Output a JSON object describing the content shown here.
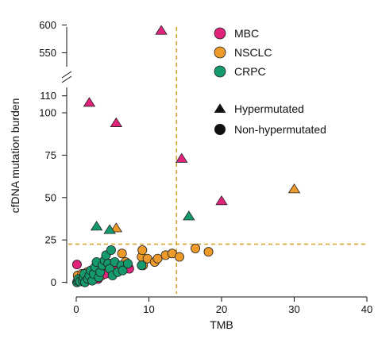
{
  "chart_data": {
    "type": "scatter",
    "xlabel": "TMB",
    "ylabel": "cfDNA mutation burden",
    "x_ticks": [
      "0",
      "10",
      "20",
      "30",
      "40"
    ],
    "x_tick_values": [
      0,
      10,
      20,
      30,
      40
    ],
    "xlim": [
      0,
      40
    ],
    "y_axis_break": true,
    "y_lower_ticks": [
      "0",
      "25",
      "50",
      "75",
      "100",
      "110"
    ],
    "y_lower_tick_values": [
      0,
      25,
      50,
      75,
      100,
      110
    ],
    "y_lower_range": [
      -3,
      115
    ],
    "y_upper_ticks": [
      "550",
      "600"
    ],
    "y_upper_tick_values": [
      550,
      600
    ],
    "y_upper_range": [
      525,
      605
    ],
    "threshold_lines": [
      {
        "axis": "x",
        "value": 13.8,
        "style": "dashed",
        "color": "#d4a02a"
      },
      {
        "axis": "y",
        "value": 22.5,
        "style": "dashed",
        "color": "#d4a02a"
      }
    ],
    "colors": {
      "MBC": "#e0227a",
      "NSCLC": "#ee9a2a",
      "CRPC": "#149a6c"
    },
    "legend": {
      "placement": "top-right",
      "groups": [
        "MBC",
        "NSCLC",
        "CRPC"
      ],
      "shapes": [
        {
          "label": "Hypermutated",
          "shape": "triangle"
        },
        {
          "label": "Non-hypermutated",
          "shape": "circle"
        }
      ]
    },
    "series": [
      {
        "name": "MBC",
        "hypermutated": [
          [
            11.7,
            590
          ],
          [
            1.8,
            106
          ],
          [
            5.5,
            94
          ],
          [
            14.5,
            73
          ],
          [
            20,
            48
          ]
        ],
        "non_hypermutated": [
          [
            0.1,
            10.5
          ],
          [
            1.0,
            3
          ],
          [
            2.2,
            4
          ],
          [
            4.0,
            5
          ],
          [
            5.5,
            7
          ],
          [
            7.3,
            8
          ],
          [
            3.0,
            2
          ]
        ]
      },
      {
        "name": "NSCLC",
        "hypermutated": [
          [
            30,
            55
          ],
          [
            5.5,
            32
          ]
        ],
        "non_hypermutated": [
          [
            0.2,
            4
          ],
          [
            0.8,
            5
          ],
          [
            1.5,
            6
          ],
          [
            2.0,
            3
          ],
          [
            2.7,
            8
          ],
          [
            3.2,
            5
          ],
          [
            3.8,
            9
          ],
          [
            4.2,
            7
          ],
          [
            4.6,
            11
          ],
          [
            5.2,
            9
          ],
          [
            5.8,
            10
          ],
          [
            6.3,
            17
          ],
          [
            6.8,
            12
          ],
          [
            7.2,
            9
          ],
          [
            9.0,
            15
          ],
          [
            9.1,
            19
          ],
          [
            9.2,
            10
          ],
          [
            9.8,
            14
          ],
          [
            10.8,
            12
          ],
          [
            11.2,
            14
          ],
          [
            12.3,
            16
          ],
          [
            13.2,
            17
          ],
          [
            14.2,
            15
          ],
          [
            16.4,
            20
          ],
          [
            18.2,
            18
          ],
          [
            2.5,
            2
          ],
          [
            3.5,
            4
          ],
          [
            1.2,
            1
          ]
        ]
      },
      {
        "name": "CRPC",
        "hypermutated": [
          [
            2.8,
            33
          ],
          [
            4.6,
            31
          ],
          [
            15.5,
            39
          ]
        ],
        "non_hypermutated": [
          [
            0.1,
            0
          ],
          [
            0.2,
            1
          ],
          [
            0.3,
            2
          ],
          [
            0.5,
            0.5
          ],
          [
            0.9,
            1
          ],
          [
            1.0,
            3
          ],
          [
            1.1,
            5
          ],
          [
            1.2,
            0
          ],
          [
            1.6,
            2
          ],
          [
            1.8,
            4
          ],
          [
            2.0,
            7
          ],
          [
            2.2,
            1
          ],
          [
            2.4,
            5
          ],
          [
            2.6,
            9
          ],
          [
            2.8,
            12
          ],
          [
            3.1,
            3
          ],
          [
            3.3,
            6
          ],
          [
            3.6,
            10
          ],
          [
            3.9,
            13
          ],
          [
            4.1,
            16
          ],
          [
            4.4,
            11
          ],
          [
            4.6,
            8
          ],
          [
            4.8,
            19
          ],
          [
            5.0,
            4
          ],
          [
            5.3,
            12
          ],
          [
            5.7,
            6
          ],
          [
            6.2,
            10
          ],
          [
            6.4,
            7
          ],
          [
            7.1,
            11
          ],
          [
            9.0,
            10
          ]
        ]
      }
    ]
  }
}
